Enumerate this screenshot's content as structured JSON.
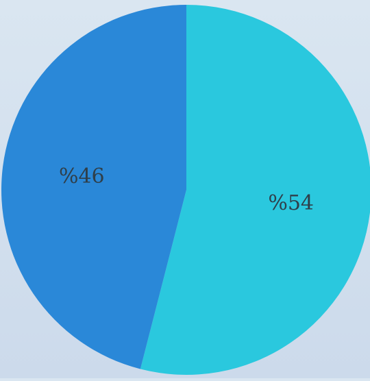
{
  "chart_data": {
    "type": "pie",
    "title": "",
    "start_angle_deg": 0,
    "direction": "clockwise",
    "slices": [
      {
        "label": "%54",
        "value": 54,
        "color": "#2ac8de"
      },
      {
        "label": "%46",
        "value": 46,
        "color": "#2a88d8"
      }
    ]
  }
}
